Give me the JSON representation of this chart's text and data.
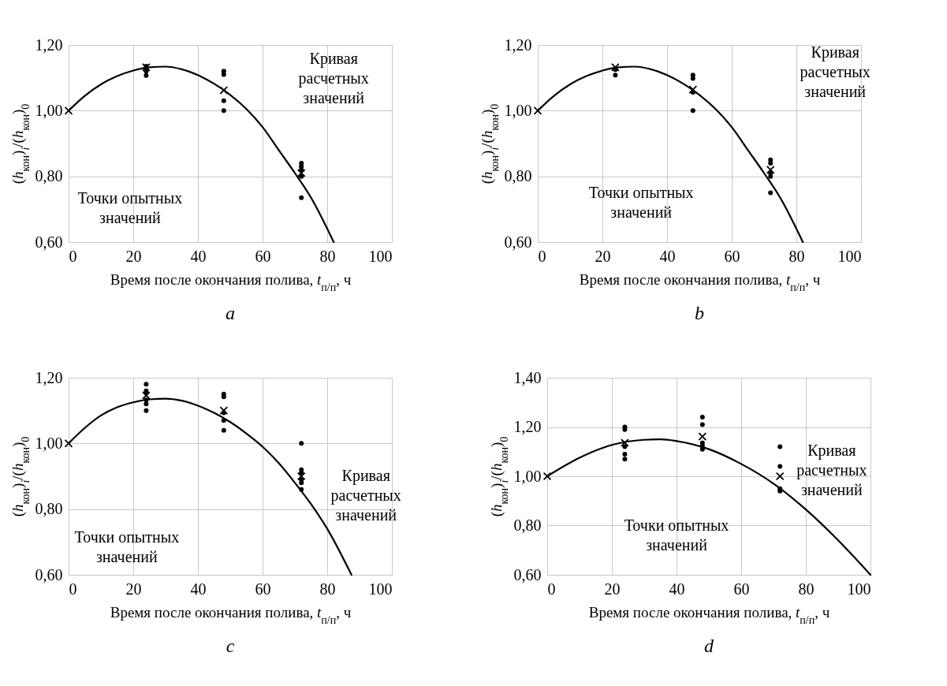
{
  "chart_data": [
    {
      "type": "line",
      "title": "a",
      "xlabel": "Время после окончания полива, t$_{п/п}$, ч",
      "ylabel": "(h$_{кон}$)$_{i}$/(h$_{кон}$)$_{0}$",
      "xlim": [
        0,
        100
      ],
      "xticks": [
        0,
        20,
        40,
        60,
        80,
        100
      ],
      "ylim": [
        0.6,
        1.2
      ],
      "yticks": [
        {
          "value": 0.6,
          "label": "0,60"
        },
        {
          "value": 0.8,
          "label": "0,80"
        },
        {
          "value": 1.0,
          "label": "1,00"
        },
        {
          "value": 1.2,
          "label": "1,20"
        }
      ],
      "grid": true,
      "annotations": [
        "Кривая расчетных значений",
        "Точки опытных значений"
      ],
      "series": [
        {
          "type": "line",
          "color": "#000000",
          "x": [
            0,
            5,
            10,
            15,
            20,
            25,
            30,
            35,
            40,
            45,
            50,
            55,
            60,
            65,
            70,
            75,
            82
          ],
          "values": [
            1.0,
            1.045,
            1.08,
            1.105,
            1.122,
            1.132,
            1.134,
            1.126,
            1.108,
            1.082,
            1.048,
            1.005,
            0.95,
            0.88,
            0.81,
            0.735,
            0.6
          ]
        },
        {
          "type": "scatter",
          "marker": "circle",
          "color": "#000000",
          "x": [
            24,
            24,
            24,
            24,
            48,
            48,
            48,
            48,
            72,
            72,
            72,
            72,
            72
          ],
          "values": [
            1.135,
            1.128,
            1.12,
            1.107,
            1.12,
            1.11,
            1.03,
            1.0,
            0.84,
            0.83,
            0.82,
            0.8,
            0.735
          ]
        },
        {
          "type": "scatter",
          "marker": "cross",
          "color": "#000000",
          "x": [
            0,
            24,
            48,
            72
          ],
          "values": [
            1.0,
            1.132,
            1.062,
            0.81
          ]
        }
      ]
    },
    {
      "type": "line",
      "title": "b",
      "xlabel": "Время после окончания полива, t$_{п/п}$, ч",
      "ylabel": "(h$_{кон}$)$_{i}$/(h$_{кон}$)$_{0}$",
      "xlim": [
        0,
        100
      ],
      "xticks": [
        0,
        20,
        40,
        60,
        80,
        100
      ],
      "ylim": [
        0.6,
        1.2
      ],
      "yticks": [
        {
          "value": 0.6,
          "label": "0,60"
        },
        {
          "value": 0.8,
          "label": "0,80"
        },
        {
          "value": 1.0,
          "label": "1,00"
        },
        {
          "value": 1.2,
          "label": "1,20"
        }
      ],
      "grid": true,
      "annotations": [
        "Кривая расчетных значений",
        "Точки опытных значений"
      ],
      "series": [
        {
          "type": "line",
          "color": "#000000",
          "x": [
            0,
            5,
            10,
            15,
            20,
            25,
            30,
            35,
            40,
            45,
            50,
            55,
            60,
            65,
            70,
            75,
            82
          ],
          "values": [
            1.0,
            1.045,
            1.08,
            1.105,
            1.122,
            1.132,
            1.134,
            1.126,
            1.108,
            1.082,
            1.048,
            1.005,
            0.95,
            0.88,
            0.81,
            0.735,
            0.6
          ]
        },
        {
          "type": "scatter",
          "marker": "circle",
          "color": "#000000",
          "x": [
            24,
            24,
            48,
            48,
            48,
            48,
            72,
            72,
            72,
            72,
            72
          ],
          "values": [
            1.125,
            1.108,
            1.108,
            1.098,
            1.056,
            1.0,
            0.85,
            0.84,
            0.81,
            0.8,
            0.75
          ]
        },
        {
          "type": "scatter",
          "marker": "cross",
          "color": "#000000",
          "x": [
            0,
            24,
            48,
            72
          ],
          "values": [
            1.0,
            1.132,
            1.064,
            0.82
          ]
        }
      ]
    },
    {
      "type": "line",
      "title": "c",
      "xlabel": "Время после окончания полива, t$_{п/п}$, ч",
      "ylabel": "(h$_{кон}$)$_{i}$/(h$_{кон}$)$_{0}$",
      "xlim": [
        0,
        100
      ],
      "xticks": [
        0,
        20,
        40,
        60,
        80,
        100
      ],
      "ylim": [
        0.6,
        1.2
      ],
      "yticks": [
        {
          "value": 0.6,
          "label": "0,60"
        },
        {
          "value": 0.8,
          "label": "0,80"
        },
        {
          "value": 1.0,
          "label": "1,00"
        },
        {
          "value": 1.2,
          "label": "1,20"
        }
      ],
      "grid": true,
      "annotations": [
        "Кривая расчетных значений",
        "Точки опытных значений"
      ],
      "series": [
        {
          "type": "line",
          "color": "#000000",
          "x": [
            0,
            5,
            10,
            15,
            20,
            25,
            30,
            35,
            40,
            45,
            50,
            55,
            60,
            65,
            70,
            75,
            80,
            87.5
          ],
          "values": [
            1.0,
            1.047,
            1.085,
            1.11,
            1.125,
            1.134,
            1.136,
            1.13,
            1.115,
            1.093,
            1.065,
            1.03,
            0.99,
            0.94,
            0.88,
            0.815,
            0.74,
            0.6
          ]
        },
        {
          "type": "scatter",
          "marker": "circle",
          "color": "#000000",
          "x": [
            24,
            24,
            24,
            24,
            24,
            24,
            48,
            48,
            48,
            48,
            48,
            72,
            72,
            72,
            72,
            72,
            72
          ],
          "values": [
            1.18,
            1.16,
            1.153,
            1.132,
            1.12,
            1.1,
            1.15,
            1.142,
            1.093,
            1.07,
            1.04,
            1.0,
            0.92,
            0.91,
            0.89,
            0.88,
            0.86
          ]
        },
        {
          "type": "scatter",
          "marker": "cross",
          "color": "#000000",
          "x": [
            0,
            24,
            48,
            72
          ],
          "values": [
            1.0,
            1.146,
            1.1,
            0.9
          ]
        }
      ]
    },
    {
      "type": "line",
      "title": "d",
      "xlabel": "Время после окончания полива, t$_{п/п}$, ч",
      "ylabel": "(h$_{кон}$)$_{i}$/(h$_{кон}$)$_{0}$",
      "xlim": [
        0,
        100
      ],
      "xticks": [
        0,
        20,
        40,
        60,
        80,
        100
      ],
      "ylim": [
        0.6,
        1.4
      ],
      "yticks": [
        {
          "value": 0.6,
          "label": "0,60"
        },
        {
          "value": 0.8,
          "label": "0,80"
        },
        {
          "value": 1.0,
          "label": "1,00"
        },
        {
          "value": 1.2,
          "label": "1,20"
        },
        {
          "value": 1.4,
          "label": "1,40"
        }
      ],
      "grid": true,
      "annotations": [
        "Кривая расчетных значений",
        "Точки опытных значений"
      ],
      "series": [
        {
          "type": "line",
          "color": "#000000",
          "x": [
            0,
            10,
            20,
            30,
            35,
            40,
            50,
            60,
            70,
            80,
            90,
            100
          ],
          "values": [
            1.0,
            1.075,
            1.127,
            1.148,
            1.15,
            1.143,
            1.11,
            1.05,
            0.97,
            0.865,
            0.74,
            0.6
          ]
        },
        {
          "type": "scatter",
          "marker": "circle",
          "color": "#000000",
          "x": [
            24,
            24,
            24,
            24,
            24,
            48,
            48,
            48,
            48,
            48,
            72,
            72,
            72,
            72
          ],
          "values": [
            1.2,
            1.19,
            1.12,
            1.09,
            1.07,
            1.24,
            1.21,
            1.135,
            1.123,
            1.11,
            1.12,
            1.04,
            0.95,
            0.94
          ]
        },
        {
          "type": "scatter",
          "marker": "cross",
          "color": "#000000",
          "x": [
            0,
            24,
            48,
            72
          ],
          "values": [
            1.0,
            1.136,
            1.161,
            1.0
          ]
        }
      ]
    }
  ]
}
